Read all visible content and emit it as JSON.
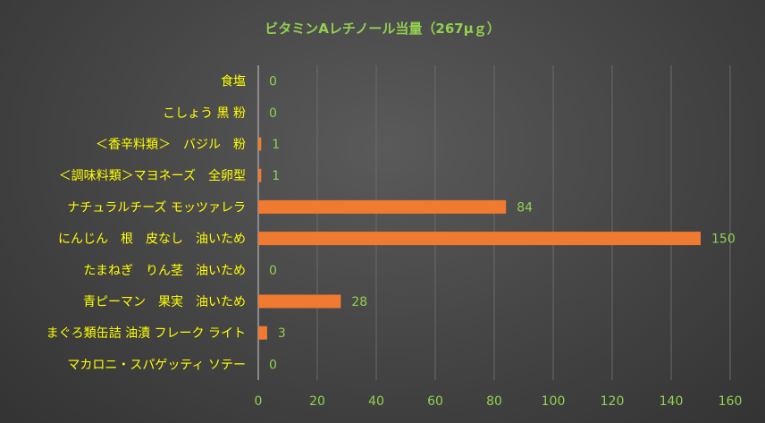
{
  "chart_data": {
    "type": "bar",
    "orientation": "horizontal",
    "title": "ビタミンAレチノール当量（267μｇ）",
    "categories": [
      "食塩",
      "こしょう 黒 粉",
      "＜香辛料類＞　バジル　粉",
      "＜調味料類＞マヨネーズ　全卵型",
      "ナチュラルチーズ モッツァレラ",
      "にんじん　根　皮なし　油いため",
      "たまねぎ　りん茎　油いため",
      "青ピーマン　果実　油いため",
      "まぐろ類缶詰 油漬 フレーク ライト",
      "マカロニ・スパゲッティ ソテー"
    ],
    "values": [
      0,
      0,
      1,
      1,
      84,
      150,
      0,
      28,
      3,
      0
    ],
    "xlim": [
      0,
      160
    ],
    "xticks": [
      0,
      20,
      40,
      60,
      80,
      100,
      120,
      140,
      160
    ],
    "grid": true,
    "data_labels": true,
    "legend": "none",
    "colors": {
      "bar": "#f07a30",
      "title": "#92d050",
      "category_text": "#ffff00",
      "value_text": "#92d050",
      "tick_text": "#92d050",
      "gridline": "#6a6a6a",
      "axis": "#a0a0a0"
    }
  }
}
